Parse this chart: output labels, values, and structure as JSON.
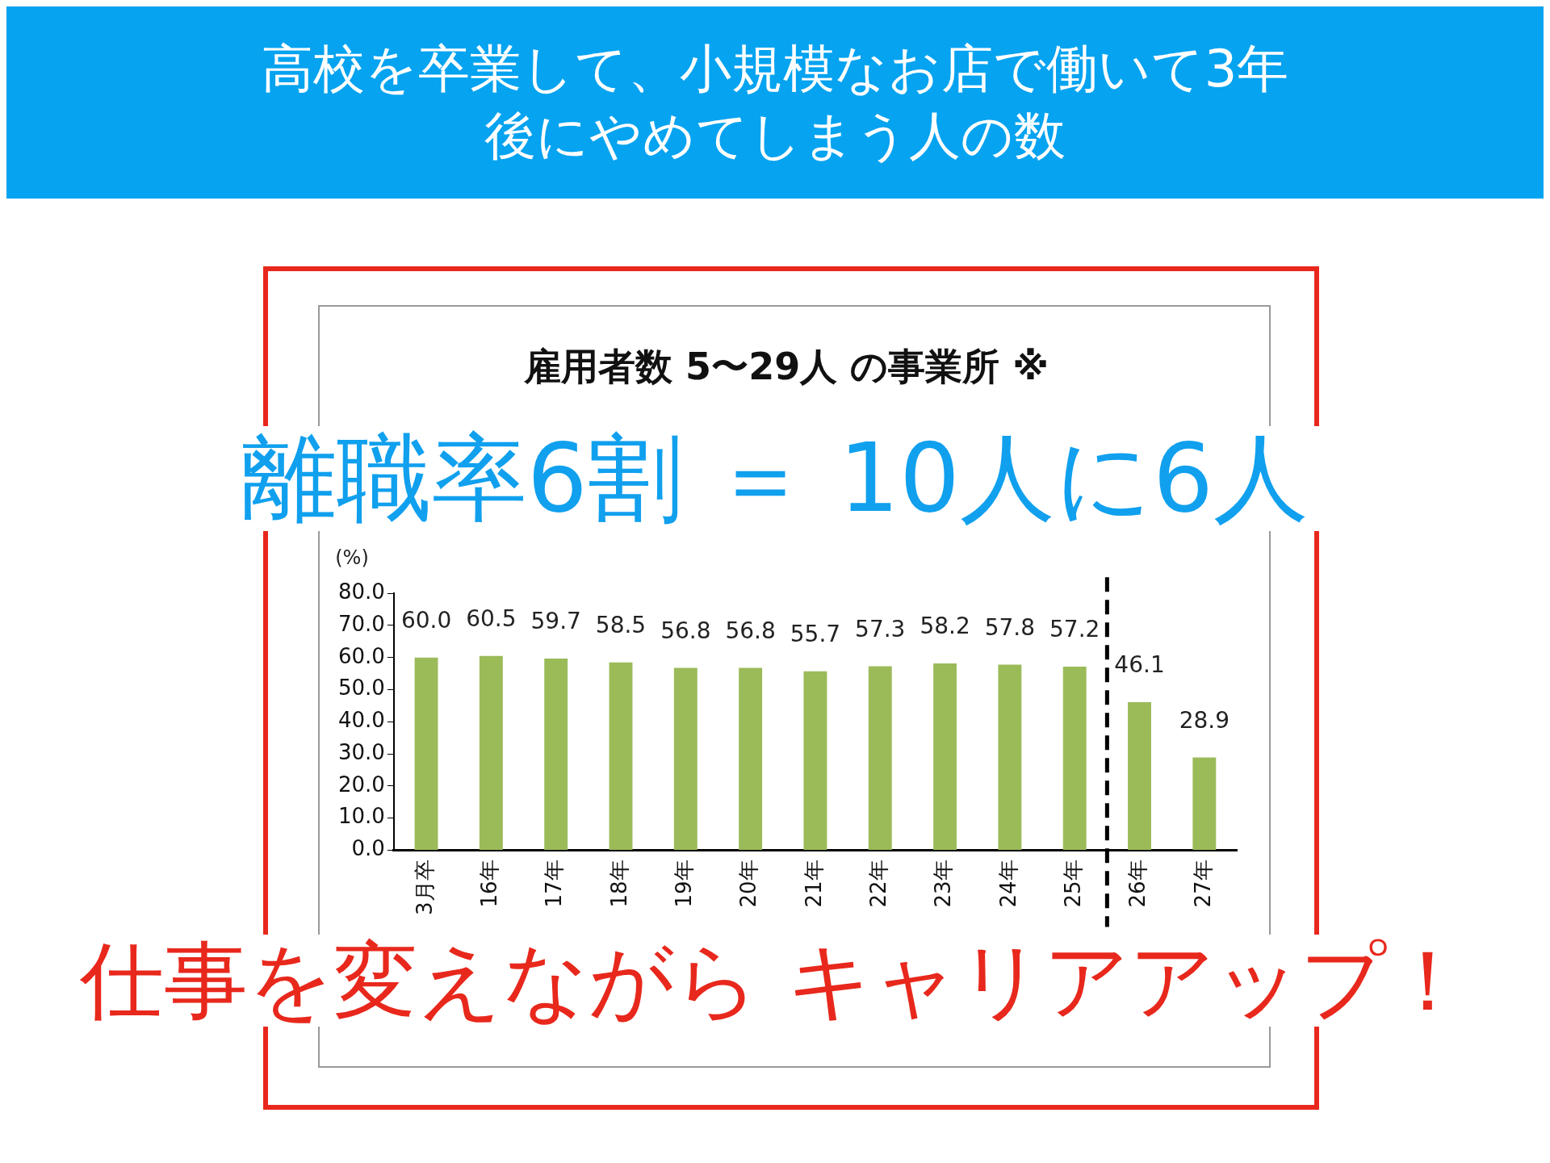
{
  "chart_data": {
    "type": "bar",
    "title": "高校を卒業して、小規模なお店で働いて3年後にやめてしまう人の数",
    "subtitle": "雇用者数 5〜29人 の事業所 ※",
    "ylabel": "(%)",
    "categories": [
      "3月卒",
      "16年",
      "17年",
      "18年",
      "19年",
      "20年",
      "21年",
      "22年",
      "23年",
      "24年",
      "25年",
      "26年",
      "27年"
    ],
    "values": [
      60.0,
      60.5,
      59.7,
      58.5,
      56.8,
      56.8,
      55.7,
      57.3,
      58.2,
      57.8,
      57.2,
      46.1,
      28.9
    ],
    "color": "#9bbb59",
    "ylim": [
      0,
      80
    ],
    "yticks": [
      {
        "value": 0,
        "label": "0.0"
      },
      {
        "value": 10,
        "label": "10.0"
      },
      {
        "value": 20,
        "label": "20.0"
      },
      {
        "value": 30,
        "label": "30.0"
      },
      {
        "value": 40,
        "label": "40.0"
      },
      {
        "value": 50,
        "label": "50.0"
      },
      {
        "value": 60,
        "label": "60.0"
      },
      {
        "value": 70,
        "label": "70.0"
      },
      {
        "value": 80,
        "label": "80.0"
      }
    ],
    "value_labels": [
      "60.0",
      "60.5",
      "59.7",
      "58.5",
      "56.8",
      "56.8",
      "55.7",
      "57.3",
      "58.2",
      "57.8",
      "57.2",
      "46.1",
      "28.9"
    ],
    "grid": false,
    "legend": false,
    "annotations": [
      "離職率6割 ＝ 10人に6人",
      "仕事を変えながら キャリアアップ！"
    ]
  }
}
